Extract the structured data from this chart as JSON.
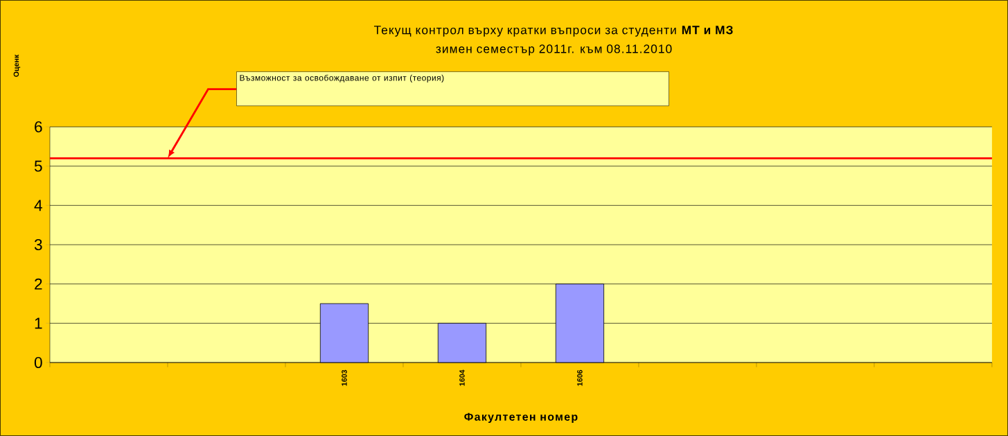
{
  "chart_data": {
    "type": "bar",
    "title": "Текущ контрол върху кратки въпроси за студенти **МТ и МЗ**",
    "subtitle": "зимен семестър 2011г. към 08.11.2010",
    "xlabel": "Факултетен номер",
    "categories": [
      null,
      null,
      "1603",
      "1604",
      "1606",
      null,
      null,
      null
    ],
    "values": [
      null,
      null,
      1.5,
      1,
      2,
      null,
      null,
      null
    ],
    "color": "#9999ff",
    "ylim": [
      0,
      6
    ],
    "yticks": [
      0,
      1,
      2,
      3,
      4,
      5,
      6
    ],
    "grid": "y",
    "ref_lines": [
      {
        "axis": "y",
        "value": 5.2,
        "color": "#ff0000"
      }
    ],
    "annotations": [
      "Оценк",
      "Възможност за освобождаване от изпит (теория)"
    ]
  }
}
